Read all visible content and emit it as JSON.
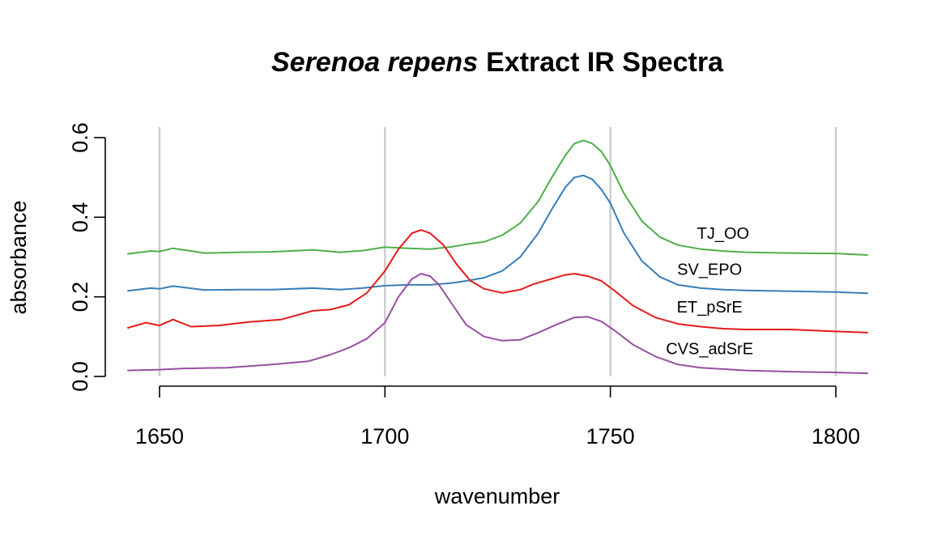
{
  "chart_data": {
    "type": "line",
    "title_italic": "Serenoa repens",
    "title_rest": "Extract IR Spectra",
    "xlabel": "wavenumber",
    "ylabel": "absorbance",
    "xlim": [
      1643,
      1807
    ],
    "ylim": [
      0.0,
      0.6
    ],
    "xticks": [
      1650,
      1700,
      1750,
      1800
    ],
    "yticks": [
      0.0,
      0.2,
      0.4,
      0.6
    ],
    "xtick_labels": [
      "1650",
      "1700",
      "1750",
      "1800"
    ],
    "ytick_labels": [
      "0.0",
      "0.2",
      "0.4",
      "0.6"
    ],
    "grid": {
      "vertical": true,
      "horizontal": false,
      "color": "#cccccc"
    },
    "series": [
      {
        "name": "TJ_OO",
        "color": "#4daf4a",
        "label_x": 1775,
        "label_y": 0.36,
        "x": [
          1643,
          1648,
          1650,
          1653,
          1660,
          1668,
          1675,
          1684,
          1690,
          1695,
          1700,
          1705,
          1710,
          1715,
          1718,
          1722,
          1726,
          1730,
          1734,
          1737,
          1740,
          1742,
          1744,
          1746,
          1748,
          1750,
          1753,
          1757,
          1761,
          1765,
          1770,
          1775,
          1780,
          1790,
          1800,
          1807
        ],
        "y": [
          0.308,
          0.315,
          0.314,
          0.322,
          0.31,
          0.312,
          0.313,
          0.318,
          0.312,
          0.316,
          0.325,
          0.322,
          0.32,
          0.326,
          0.332,
          0.338,
          0.355,
          0.385,
          0.44,
          0.5,
          0.555,
          0.585,
          0.593,
          0.585,
          0.565,
          0.53,
          0.46,
          0.39,
          0.35,
          0.33,
          0.32,
          0.315,
          0.312,
          0.31,
          0.309,
          0.305
        ]
      },
      {
        "name": "SV_EPO",
        "color": "#377eb8",
        "label_x": 1772,
        "label_y": 0.27,
        "x": [
          1643,
          1648,
          1650,
          1653,
          1660,
          1668,
          1675,
          1684,
          1690,
          1695,
          1700,
          1705,
          1710,
          1715,
          1718,
          1722,
          1726,
          1730,
          1734,
          1737,
          1740,
          1742,
          1744,
          1746,
          1748,
          1750,
          1753,
          1757,
          1761,
          1765,
          1770,
          1775,
          1780,
          1790,
          1800,
          1807
        ],
        "y": [
          0.215,
          0.222,
          0.22,
          0.227,
          0.217,
          0.218,
          0.218,
          0.222,
          0.218,
          0.222,
          0.228,
          0.23,
          0.23,
          0.235,
          0.24,
          0.248,
          0.265,
          0.3,
          0.36,
          0.42,
          0.475,
          0.5,
          0.505,
          0.495,
          0.47,
          0.435,
          0.36,
          0.29,
          0.25,
          0.23,
          0.222,
          0.218,
          0.216,
          0.214,
          0.212,
          0.209
        ]
      },
      {
        "name": "ET_pSrE",
        "color": "#e41a1c",
        "label_x": 1772,
        "label_y": 0.175,
        "x": [
          1643,
          1647,
          1650,
          1653,
          1657,
          1663,
          1670,
          1677,
          1684,
          1688,
          1692,
          1696,
          1700,
          1703,
          1706,
          1708,
          1710,
          1713,
          1716,
          1719,
          1722,
          1726,
          1730,
          1733,
          1736,
          1740,
          1742,
          1745,
          1748,
          1751,
          1755,
          1760,
          1765,
          1770,
          1775,
          1780,
          1790,
          1800,
          1807
        ],
        "y": [
          0.122,
          0.135,
          0.128,
          0.143,
          0.125,
          0.128,
          0.137,
          0.143,
          0.165,
          0.168,
          0.18,
          0.21,
          0.265,
          0.32,
          0.36,
          0.368,
          0.36,
          0.33,
          0.28,
          0.24,
          0.22,
          0.21,
          0.218,
          0.232,
          0.242,
          0.255,
          0.258,
          0.252,
          0.24,
          0.215,
          0.178,
          0.148,
          0.132,
          0.125,
          0.12,
          0.118,
          0.118,
          0.113,
          0.11
        ]
      },
      {
        "name": "CVS_adSrE",
        "color": "#984ea3",
        "label_x": 1772,
        "label_y": 0.07,
        "x": [
          1643,
          1650,
          1655,
          1665,
          1675,
          1683,
          1688,
          1692,
          1696,
          1700,
          1703,
          1706,
          1708,
          1710,
          1712,
          1715,
          1718,
          1722,
          1726,
          1730,
          1734,
          1738,
          1742,
          1745,
          1748,
          1751,
          1755,
          1760,
          1765,
          1770,
          1780,
          1790,
          1800,
          1807
        ],
        "y": [
          0.015,
          0.017,
          0.02,
          0.022,
          0.03,
          0.038,
          0.055,
          0.072,
          0.095,
          0.135,
          0.2,
          0.245,
          0.258,
          0.252,
          0.23,
          0.18,
          0.13,
          0.1,
          0.09,
          0.092,
          0.11,
          0.13,
          0.148,
          0.15,
          0.138,
          0.115,
          0.08,
          0.05,
          0.03,
          0.022,
          0.015,
          0.012,
          0.01,
          0.008
        ]
      }
    ]
  }
}
